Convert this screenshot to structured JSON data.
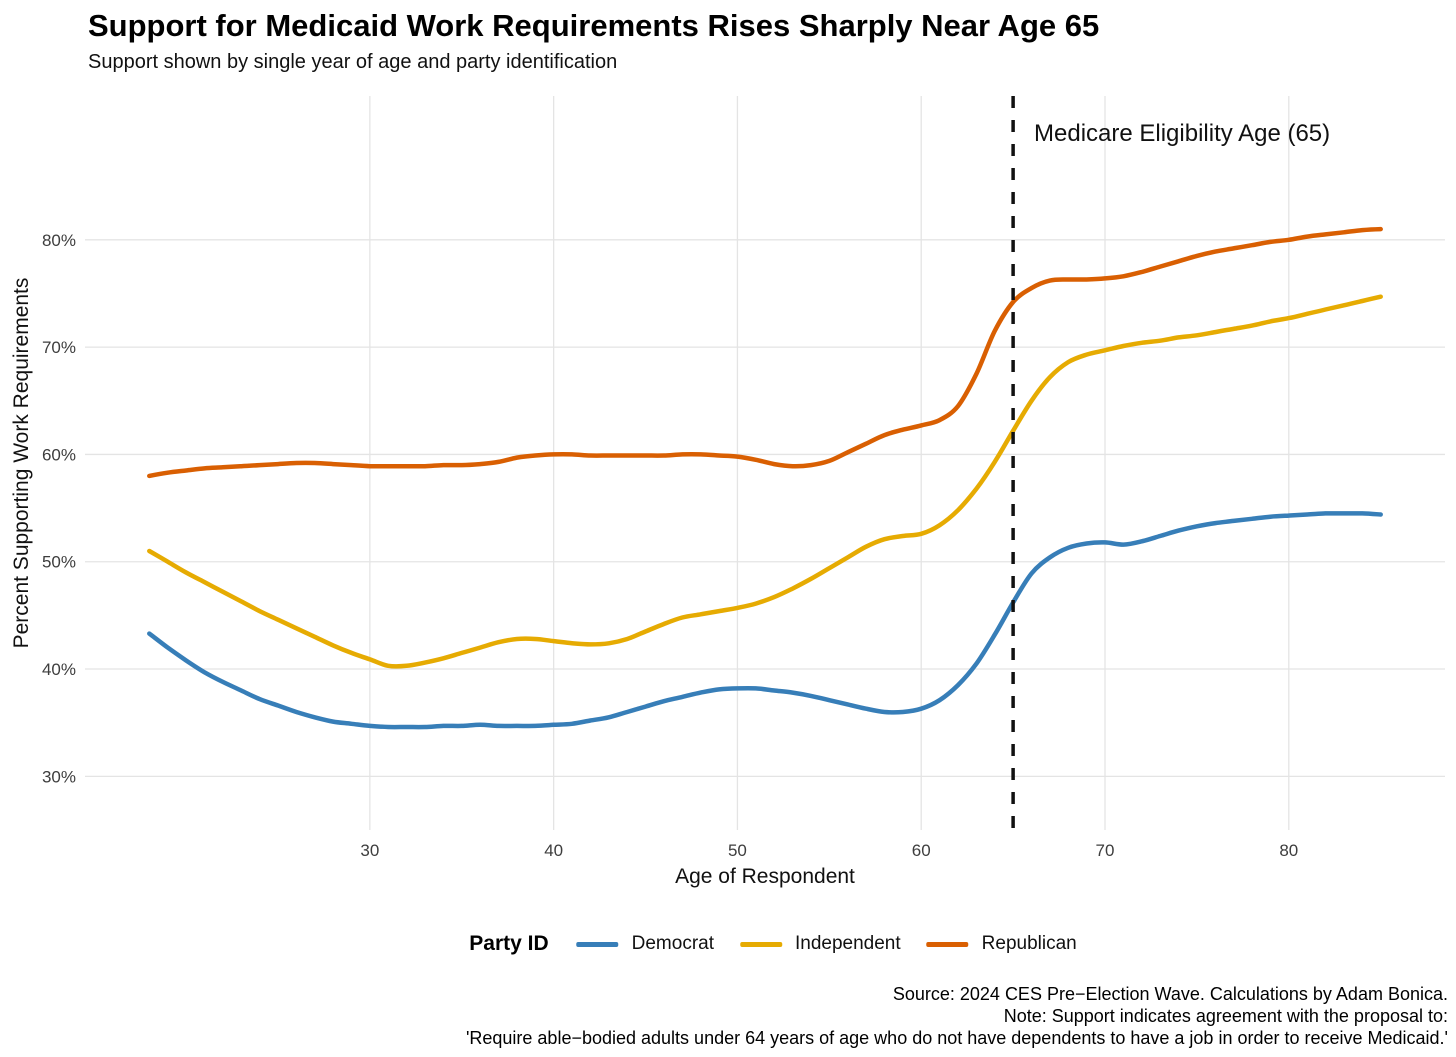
{
  "header": {
    "title": "Support for Medicaid Work Requirements Rises Sharply Near Age 65",
    "subtitle": "Support shown by single year of age and party identification"
  },
  "chart_data": {
    "type": "line",
    "title": "Support for Medicaid Work Requirements Rises Sharply Near Age 65",
    "subtitle": "Support shown by single year of age and party identification",
    "xlabel": "Age of Respondent",
    "ylabel": "Percent Supporting Work Requirements",
    "legend_title": "Party ID",
    "legend_position": "bottom",
    "grid": "major-only",
    "xlim": [
      14.5,
      88.5
    ],
    "ylim": [
      25,
      93.4
    ],
    "x_ticks": [
      30,
      40,
      50,
      60,
      70,
      80
    ],
    "y_ticks": [
      30,
      40,
      50,
      60,
      70,
      80
    ],
    "y_tick_suffix": "%",
    "reference_line": {
      "x": 65,
      "style": "dashed",
      "color": "#111111"
    },
    "annotation": {
      "label": "Medicare Eligibility Age (65)",
      "x": 65.8,
      "y": 90
    },
    "colors": {
      "grid": "#e4e4e4",
      "axis_text": "#3d3d3d",
      "background": "#ffffff"
    },
    "x": [
      18,
      19,
      20,
      21,
      22,
      23,
      24,
      25,
      26,
      27,
      28,
      29,
      30,
      31,
      32,
      33,
      34,
      35,
      36,
      37,
      38,
      39,
      40,
      41,
      42,
      43,
      44,
      45,
      46,
      47,
      48,
      49,
      50,
      51,
      52,
      53,
      54,
      55,
      56,
      57,
      58,
      59,
      60,
      61,
      62,
      63,
      64,
      65,
      66,
      67,
      68,
      69,
      70,
      71,
      72,
      73,
      74,
      75,
      76,
      77,
      78,
      79,
      80,
      81,
      82,
      83,
      84,
      85
    ],
    "series": [
      {
        "name": "Democrat",
        "color": "#377EB8",
        "values": [
          43.3,
          42.0,
          40.8,
          39.7,
          38.8,
          38.0,
          37.2,
          36.6,
          36.0,
          35.5,
          35.1,
          34.9,
          34.7,
          34.6,
          34.6,
          34.6,
          34.7,
          34.7,
          34.8,
          34.7,
          34.7,
          34.7,
          34.8,
          34.9,
          35.2,
          35.5,
          36.0,
          36.5,
          37.0,
          37.4,
          37.8,
          38.1,
          38.2,
          38.2,
          38.0,
          37.8,
          37.5,
          37.1,
          36.7,
          36.3,
          36.0,
          36.0,
          36.3,
          37.1,
          38.5,
          40.5,
          43.2,
          46.2,
          48.9,
          50.4,
          51.3,
          51.7,
          51.8,
          51.6,
          51.9,
          52.4,
          52.9,
          53.3,
          53.6,
          53.8,
          54.0,
          54.2,
          54.3,
          54.4,
          54.5,
          54.5,
          54.5,
          54.4
        ]
      },
      {
        "name": "Independent",
        "color": "#E6AB02",
        "values": [
          51.0,
          50.0,
          49.0,
          48.1,
          47.2,
          46.3,
          45.4,
          44.6,
          43.8,
          43.0,
          42.2,
          41.5,
          40.9,
          40.3,
          40.3,
          40.6,
          41.0,
          41.5,
          42.0,
          42.5,
          42.8,
          42.8,
          42.6,
          42.4,
          42.3,
          42.4,
          42.8,
          43.5,
          44.2,
          44.8,
          45.1,
          45.4,
          45.7,
          46.1,
          46.7,
          47.5,
          48.4,
          49.4,
          50.4,
          51.4,
          52.1,
          52.4,
          52.6,
          53.4,
          54.8,
          56.8,
          59.3,
          62.2,
          65.0,
          67.2,
          68.6,
          69.3,
          69.7,
          70.1,
          70.4,
          70.6,
          70.9,
          71.1,
          71.4,
          71.7,
          72.0,
          72.4,
          72.7,
          73.1,
          73.5,
          73.9,
          74.3,
          74.7
        ]
      },
      {
        "name": "Republican",
        "color": "#D95F02",
        "values": [
          58.0,
          58.3,
          58.5,
          58.7,
          58.8,
          58.9,
          59.0,
          59.1,
          59.2,
          59.2,
          59.1,
          59.0,
          58.9,
          58.9,
          58.9,
          58.9,
          59.0,
          59.0,
          59.1,
          59.3,
          59.7,
          59.9,
          60.0,
          60.0,
          59.9,
          59.9,
          59.9,
          59.9,
          59.9,
          60.0,
          60.0,
          59.9,
          59.8,
          59.5,
          59.1,
          58.9,
          59.0,
          59.4,
          60.2,
          61.0,
          61.8,
          62.3,
          62.7,
          63.2,
          64.5,
          67.5,
          71.5,
          74.2,
          75.5,
          76.2,
          76.3,
          76.3,
          76.4,
          76.6,
          77.0,
          77.5,
          78.0,
          78.5,
          78.9,
          79.2,
          79.5,
          79.8,
          80.0,
          80.3,
          80.5,
          80.7,
          80.9,
          81.0
        ]
      }
    ]
  },
  "caption": {
    "line1": "Source: 2024 CES Pre−Election Wave. Calculations by Adam Bonica.",
    "line2": "Note: Support indicates agreement with the proposal to:",
    "line3": "'Require able−bodied adults under 64 years of age who do not have dependents to have a job in order to receive Medicaid.'"
  }
}
